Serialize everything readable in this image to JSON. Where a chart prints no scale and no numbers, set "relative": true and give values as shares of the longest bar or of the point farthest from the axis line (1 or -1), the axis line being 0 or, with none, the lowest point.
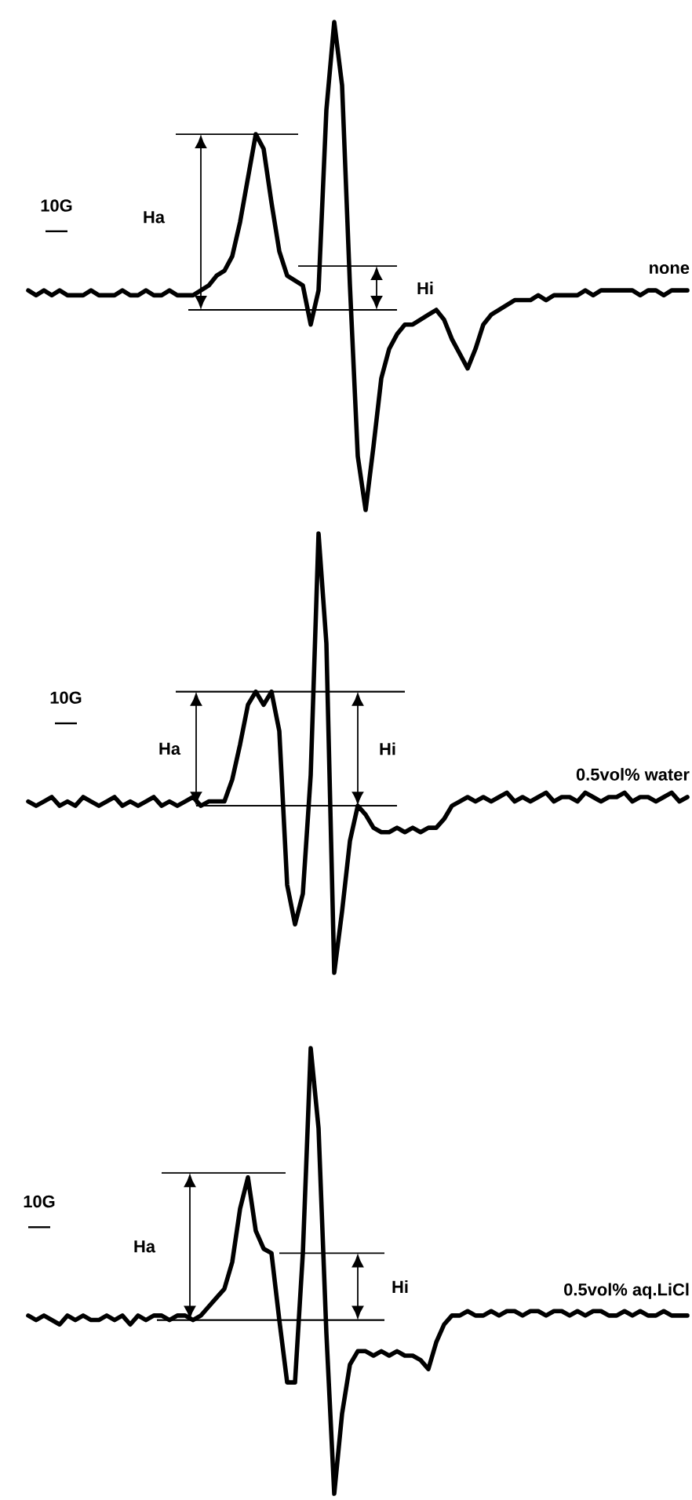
{
  "chart_data": [
    {
      "type": "line",
      "relative": true,
      "categories": [
        null,
        null,
        null,
        null,
        null,
        null,
        null,
        null,
        null,
        null,
        null,
        null,
        null,
        null,
        null,
        null,
        null,
        null,
        null,
        null,
        null,
        null,
        null,
        null,
        null,
        null,
        null,
        null,
        null,
        null,
        null,
        null,
        null,
        null,
        null,
        null,
        null,
        null,
        null,
        null,
        null,
        null,
        null,
        null,
        null,
        null,
        null,
        null,
        null,
        null,
        null,
        null,
        null,
        null,
        null,
        null,
        null,
        null,
        null,
        null,
        null,
        null,
        null,
        null,
        null,
        null,
        null,
        null,
        null,
        null,
        null,
        null,
        null,
        null,
        null,
        null,
        null,
        null,
        null,
        null,
        null,
        null,
        null,
        null,
        null
      ],
      "series": [
        {
          "name": "none",
          "color": "#000000",
          "values": [
            0.45,
            0.44,
            0.45,
            0.44,
            0.45,
            0.44,
            0.44,
            0.44,
            0.45,
            0.44,
            0.44,
            0.44,
            0.45,
            0.44,
            0.44,
            0.45,
            0.44,
            0.44,
            0.45,
            0.44,
            0.44,
            0.44,
            0.45,
            0.46,
            0.48,
            0.49,
            0.52,
            0.59,
            0.68,
            0.77,
            0.74,
            0.63,
            0.53,
            0.48,
            0.47,
            0.46,
            0.38,
            0.45,
            0.82,
            1.0,
            0.87,
            0.46,
            0.11,
            0,
            0.13,
            0.27,
            0.33,
            0.36,
            0.38,
            0.38,
            0.39,
            0.4,
            0.41,
            0.39,
            0.35,
            0.32,
            0.29,
            0.33,
            0.38,
            0.4,
            0.41,
            0.42,
            0.43,
            0.43,
            0.43,
            0.44,
            0.43,
            0.44,
            0.44,
            0.44,
            0.44,
            0.45,
            0.44,
            0.45,
            0.45,
            0.45,
            0.45,
            0.45,
            0.44,
            0.45,
            0.45,
            0.44,
            0.45,
            0.45,
            0.45
          ]
        }
      ],
      "annotations": [
        "10G",
        "Ha",
        "Hi"
      ]
    },
    {
      "type": "line",
      "relative": true,
      "categories": [
        null,
        null,
        null,
        null,
        null,
        null,
        null,
        null,
        null,
        null,
        null,
        null,
        null,
        null,
        null,
        null,
        null,
        null,
        null,
        null,
        null,
        null,
        null,
        null,
        null,
        null,
        null,
        null,
        null,
        null,
        null,
        null,
        null,
        null,
        null,
        null,
        null,
        null,
        null,
        null,
        null,
        null,
        null,
        null,
        null,
        null,
        null,
        null,
        null,
        null,
        null,
        null,
        null,
        null,
        null,
        null,
        null,
        null,
        null,
        null,
        null,
        null,
        null,
        null,
        null,
        null,
        null,
        null,
        null,
        null,
        null,
        null,
        null,
        null,
        null,
        null,
        null,
        null,
        null,
        null,
        null,
        null,
        null,
        null,
        null
      ],
      "series": [
        {
          "name": "0.5vol% water",
          "color": "#000000",
          "values": [
            0.39,
            0.38,
            0.39,
            0.4,
            0.38,
            0.39,
            0.38,
            0.4,
            0.39,
            0.38,
            0.39,
            0.4,
            0.38,
            0.39,
            0.38,
            0.39,
            0.4,
            0.38,
            0.39,
            0.38,
            0.39,
            0.4,
            0.38,
            0.39,
            0.39,
            0.39,
            0.44,
            0.52,
            0.61,
            0.64,
            0.61,
            0.64,
            0.55,
            0.2,
            0.11,
            0.18,
            0.45,
            1.0,
            0.75,
            0,
            0.14,
            0.3,
            0.38,
            0.36,
            0.33,
            0.32,
            0.32,
            0.33,
            0.32,
            0.33,
            0.32,
            0.33,
            0.33,
            0.35,
            0.38,
            0.39,
            0.4,
            0.39,
            0.4,
            0.39,
            0.4,
            0.41,
            0.39,
            0.4,
            0.39,
            0.4,
            0.41,
            0.39,
            0.4,
            0.4,
            0.39,
            0.41,
            0.4,
            0.39,
            0.4,
            0.4,
            0.41,
            0.39,
            0.4,
            0.4,
            0.39,
            0.4,
            0.41,
            0.39,
            0.4
          ]
        }
      ],
      "annotations": [
        "10G",
        "Ha",
        "Hi"
      ]
    },
    {
      "type": "line",
      "relative": true,
      "categories": [
        null,
        null,
        null,
        null,
        null,
        null,
        null,
        null,
        null,
        null,
        null,
        null,
        null,
        null,
        null,
        null,
        null,
        null,
        null,
        null,
        null,
        null,
        null,
        null,
        null,
        null,
        null,
        null,
        null,
        null,
        null,
        null,
        null,
        null,
        null,
        null,
        null,
        null,
        null,
        null,
        null,
        null,
        null,
        null,
        null,
        null,
        null,
        null,
        null,
        null,
        null,
        null,
        null,
        null,
        null,
        null,
        null,
        null,
        null,
        null,
        null,
        null,
        null,
        null,
        null,
        null,
        null,
        null,
        null,
        null,
        null,
        null,
        null,
        null,
        null,
        null,
        null,
        null,
        null,
        null,
        null,
        null,
        null,
        null,
        null
      ],
      "series": [
        {
          "name": "0.5vol% aq.LiCl",
          "color": "#000000",
          "values": [
            0.4,
            0.39,
            0.4,
            0.39,
            0.38,
            0.4,
            0.39,
            0.4,
            0.39,
            0.39,
            0.4,
            0.39,
            0.4,
            0.38,
            0.4,
            0.39,
            0.4,
            0.4,
            0.39,
            0.4,
            0.4,
            0.39,
            0.4,
            0.42,
            0.44,
            0.46,
            0.52,
            0.64,
            0.71,
            0.59,
            0.55,
            0.54,
            0.39,
            0.25,
            0.25,
            0.54,
            1.0,
            0.82,
            0.36,
            0,
            0.18,
            0.29,
            0.32,
            0.32,
            0.31,
            0.32,
            0.31,
            0.32,
            0.31,
            0.31,
            0.3,
            0.28,
            0.34,
            0.38,
            0.4,
            0.4,
            0.41,
            0.4,
            0.4,
            0.41,
            0.4,
            0.41,
            0.41,
            0.4,
            0.41,
            0.41,
            0.4,
            0.41,
            0.41,
            0.4,
            0.41,
            0.4,
            0.41,
            0.41,
            0.4,
            0.4,
            0.41,
            0.4,
            0.41,
            0.4,
            0.4,
            0.41,
            0.4,
            0.4,
            0.4
          ]
        }
      ],
      "annotations": [
        "10G",
        "Ha",
        "Hi"
      ]
    }
  ]
}
